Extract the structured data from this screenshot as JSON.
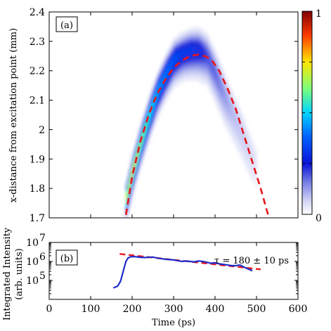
{
  "colors": {
    "fit": "#e8141c",
    "trace": "#1f2cc8",
    "axis": "#000000"
  },
  "chart_data": [
    {
      "type": "heatmap",
      "panel_label": "(a)",
      "xlabel": "",
      "ylabel": "x-distance from excitation point (mm)",
      "xlim": [
        0,
        600
      ],
      "ylim": [
        1.7,
        2.4
      ],
      "xticks": [
        0,
        100,
        200,
        300,
        400,
        500,
        600
      ],
      "yticks": [
        1.7,
        1.8,
        1.9,
        2.0,
        2.1,
        2.2,
        2.3,
        2.4
      ],
      "ytick_labels": [
        "1.7",
        "1.8",
        "1.9",
        "2",
        "2.1",
        "2.2",
        "2.3",
        "2.4"
      ],
      "colorbar": {
        "colormap": "jet",
        "tick_labels": [
          "0",
          "1"
        ],
        "range": [
          0,
          1
        ]
      },
      "ridge": {
        "x": [
          185,
          200,
          220,
          240,
          260,
          280,
          300,
          320,
          340,
          360,
          380,
          400,
          420,
          440,
          460,
          480,
          500
        ],
        "y": [
          1.77,
          1.86,
          1.96,
          2.05,
          2.13,
          2.19,
          2.24,
          2.26,
          2.27,
          2.27,
          2.25,
          2.19,
          2.12,
          2.06,
          2.0,
          1.93,
          1.87
        ],
        "peak_intensity": [
          0.7,
          0.75,
          0.65,
          0.55,
          0.45,
          0.4,
          0.35,
          0.3,
          0.3,
          0.28,
          0.22,
          0.2,
          0.16,
          0.12,
          0.1,
          0.08,
          0.06
        ]
      },
      "fit_curve": {
        "style": "red dashed",
        "x": [
          185,
          200,
          220,
          240,
          260,
          280,
          300,
          320,
          340,
          360,
          375,
          390,
          410,
          430,
          450,
          470,
          490,
          510,
          530
        ],
        "y": [
          1.71,
          1.84,
          1.96,
          2.05,
          2.12,
          2.17,
          2.21,
          2.235,
          2.25,
          2.255,
          2.25,
          2.24,
          2.2,
          2.14,
          2.07,
          1.98,
          1.89,
          1.8,
          1.7
        ]
      }
    },
    {
      "type": "line",
      "panel_label": "(b)",
      "xlabel": "Time (ps)",
      "ylabel": "Integrated Intensity (arb. units)",
      "ylabel_lines": [
        "Integrated Intensity",
        "(arb. units)"
      ],
      "yscale": "log",
      "xlim": [
        0,
        600
      ],
      "ylim": [
        10000,
        10000000
      ],
      "xticks": [
        0,
        100,
        200,
        300,
        400,
        500,
        600
      ],
      "ytick_exponents": [
        5,
        6,
        7
      ],
      "ytick_base": "10",
      "annotation": "τ = 180 ± 10 ps",
      "series": [
        {
          "style": "blue solid",
          "x": [
            155,
            165,
            172,
            180,
            185,
            190,
            195,
            200,
            210,
            220,
            230,
            240,
            250,
            260,
            270,
            280,
            290,
            300,
            310,
            320,
            330,
            340,
            350,
            360,
            370,
            380,
            390,
            400,
            410,
            420,
            430,
            440,
            450,
            460,
            470,
            480,
            490
          ],
          "y": [
            40000,
            50000,
            90000,
            400000,
            1000000,
            1500000,
            1700000,
            1800000,
            1750000,
            1650000,
            1600000,
            1650000,
            1700000,
            1500000,
            1400000,
            1300000,
            1250000,
            1200000,
            1100000,
            1000000,
            1050000,
            1000000,
            950000,
            1050000,
            1000000,
            900000,
            800000,
            850000,
            750000,
            700000,
            650000,
            600000,
            600000,
            650000,
            500000,
            400000,
            320000
          ]
        },
        {
          "style": "red dashed",
          "x": [
            170,
            510
          ],
          "y": [
            2500000,
            380000
          ]
        }
      ]
    }
  ]
}
